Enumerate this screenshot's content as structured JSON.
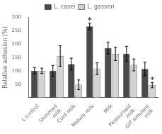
{
  "chart_data": {
    "type": "bar",
    "categories": [
      "L control",
      "Skimmed\nmilk",
      "Curd milk",
      "Mature milk",
      "Milk",
      "Pasteurised\nmilk",
      "GIT simulant\nmilk"
    ],
    "series": [
      {
        "name": "L. casei",
        "color": "#4a4a4a",
        "values": [
          100,
          100,
          125,
          265,
          185,
          163,
          107
        ],
        "errors": [
          12,
          20,
          22,
          12,
          22,
          28,
          25
        ]
      },
      {
        "name": "L. gasseri",
        "color": "#d3d3d3",
        "values": [
          100,
          155,
          48,
          108,
          163,
          122,
          47
        ],
        "errors": [
          10,
          38,
          18,
          22,
          25,
          22,
          10
        ]
      }
    ],
    "annotations": [
      {
        "text": "*",
        "series": "L. casei",
        "category": "Mature milk"
      },
      {
        "text": "*",
        "series": "L. gasseri",
        "category": "GIT simulant\nmilk"
      }
    ],
    "ylabel": "Relative adhesion (%)",
    "ylim": [
      0,
      300
    ],
    "yticks": [
      50,
      100,
      150,
      200,
      250,
      300
    ],
    "grid": false,
    "legend": "top"
  }
}
